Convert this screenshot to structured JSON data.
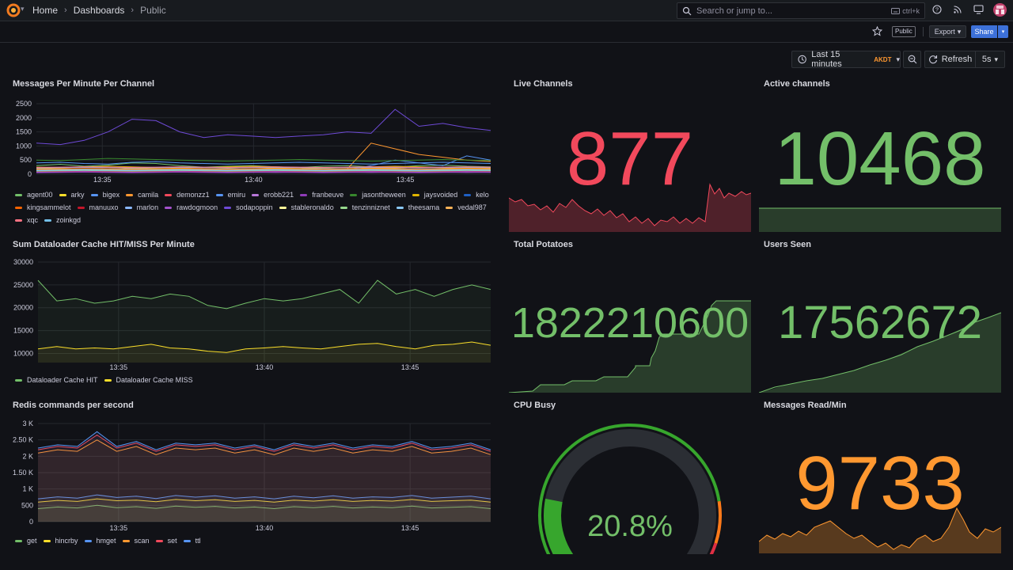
{
  "breadcrumb": {
    "home": "Home",
    "dashboards": "Dashboards",
    "current": "Public"
  },
  "search": {
    "placeholder": "Search or jump to...",
    "shortcut": "ctrl+k"
  },
  "toolbar": {
    "public_tag": "Public",
    "export_label": "Export",
    "share_label": "Share"
  },
  "time": {
    "range": "Last 15 minutes",
    "timezone": "AKDT",
    "refresh_label": "Refresh",
    "interval": "5s"
  },
  "icons": [
    "grafana-logo-icon",
    "search-icon",
    "keyboard-icon",
    "help-icon",
    "news-rss-icon",
    "monitor-icon",
    "user-avatar-icon",
    "star-icon",
    "clock-icon",
    "zoom-out-icon",
    "refresh-icon",
    "chevron-down-icon"
  ],
  "colors": {
    "green": "#73bf69",
    "red": "#f2495c",
    "orange": "#ff9830",
    "yellow": "#fade2a",
    "blue": "#5794f2",
    "accent": "#3d71d9"
  },
  "panels": {
    "messages_per_minute": {
      "title": "Messages Per Minute Per Channel"
    },
    "dataloader": {
      "title": "Sum Dataloader Cache HIT/MISS Per Minute"
    },
    "redis": {
      "title": "Redis commands per second"
    },
    "live_channels": {
      "title": "Live Channels",
      "value": "877",
      "color": "#f2495c"
    },
    "active_channels": {
      "title": "Active channels",
      "value": "10468",
      "color": "#73bf69"
    },
    "total_potatoes": {
      "title": "Total Potatoes",
      "value": "1822210600",
      "color": "#73bf69"
    },
    "users_seen": {
      "title": "Users Seen",
      "value": "17562672",
      "color": "#73bf69"
    },
    "cpu_busy": {
      "title": "CPU Busy",
      "value": "20.8%",
      "percent": 20.8,
      "color": "#73bf69"
    },
    "messages_read": {
      "title": "Messages Read/Min",
      "value": "9733",
      "color": "#ff9830"
    }
  },
  "chart_data": [
    {
      "type": "line",
      "title": "Messages Per Minute Per Channel",
      "x_ticks": [
        "13:35",
        "13:40",
        "13:45"
      ],
      "y_ticks": [
        "2500",
        "2000",
        "1500",
        "1000",
        "500",
        "0"
      ],
      "ylim": [
        0,
        2500
      ],
      "legend_placement": "bottom",
      "series": [
        {
          "name": "agent00",
          "color": "#73bf69",
          "values": [
            300,
            350,
            280,
            320,
            400,
            380,
            300,
            250,
            280,
            300,
            260,
            240,
            280,
            300,
            260,
            250,
            300,
            320,
            280,
            260
          ]
        },
        {
          "name": "arky",
          "color": "#fade2a",
          "values": [
            200,
            220,
            260,
            240,
            200,
            220,
            250,
            230,
            210,
            240,
            220,
            200,
            210,
            230,
            220,
            210,
            240,
            220,
            200,
            210
          ]
        },
        {
          "name": "bigex",
          "color": "#5794f2",
          "values": [
            150,
            140,
            160,
            170,
            150,
            140,
            160,
            150,
            140,
            150,
            160,
            170,
            150,
            140,
            300,
            500,
            400,
            300,
            650,
            500
          ]
        },
        {
          "name": "camila",
          "color": "#ff9830",
          "values": [
            100,
            120,
            140,
            160,
            150,
            140,
            130,
            150,
            170,
            160,
            150,
            140,
            160,
            180,
            1100,
            900,
            700,
            600,
            500,
            450
          ]
        },
        {
          "name": "demonzz1",
          "color": "#f2495c",
          "values": [
            80,
            90,
            100,
            110,
            100,
            90,
            100,
            110,
            120,
            110,
            100,
            90,
            100,
            110,
            120,
            110,
            100,
            90,
            100,
            110
          ]
        },
        {
          "name": "emiru",
          "color": "#5794f2",
          "values": [
            400,
            420,
            380,
            360,
            420,
            440,
            400,
            380,
            360,
            380,
            400,
            420,
            400,
            380,
            360,
            380,
            400,
            420,
            400,
            380
          ]
        },
        {
          "name": "erobb221",
          "color": "#b877d9",
          "values": [
            60,
            70,
            80,
            70,
            60,
            70,
            80,
            90,
            80,
            70,
            60,
            70,
            80,
            70,
            60,
            70,
            80,
            70,
            60,
            70
          ]
        },
        {
          "name": "franbeuve",
          "color": "#8f3bb8",
          "values": [
            50,
            60,
            70,
            60,
            50,
            60,
            70,
            60,
            50,
            60,
            70,
            60,
            50,
            60,
            70,
            60,
            50,
            60,
            70,
            60
          ]
        },
        {
          "name": "jasontheween",
          "color": "#37872d",
          "values": [
            500,
            480,
            520,
            560,
            540,
            520,
            500,
            480,
            460,
            480,
            500,
            520,
            500,
            480,
            460,
            480,
            500,
            520,
            500,
            480
          ]
        },
        {
          "name": "jaysvoided",
          "color": "#e0b400",
          "values": [
            250,
            240,
            260,
            280,
            260,
            240,
            220,
            240,
            260,
            280,
            260,
            240,
            220,
            240,
            260,
            280,
            260,
            240,
            220,
            240
          ]
        },
        {
          "name": "kelo",
          "color": "#1f60c4",
          "values": [
            120,
            130,
            140,
            130,
            120,
            130,
            140,
            130,
            120,
            130,
            140,
            130,
            120,
            130,
            140,
            130,
            120,
            130,
            140,
            130
          ]
        },
        {
          "name": "kingsammelot",
          "color": "#fa6400",
          "values": [
            180,
            190,
            200,
            190,
            180,
            190,
            200,
            190,
            180,
            190,
            200,
            190,
            180,
            190,
            200,
            190,
            180,
            190,
            200,
            190
          ]
        },
        {
          "name": "manuuxo",
          "color": "#c4162a",
          "values": [
            90,
            100,
            110,
            100,
            90,
            100,
            110,
            100,
            90,
            100,
            110,
            100,
            90,
            100,
            110,
            100,
            90,
            100,
            110,
            100
          ]
        },
        {
          "name": "marlon",
          "color": "#8ab8ff",
          "values": [
            220,
            230,
            240,
            230,
            220,
            230,
            240,
            230,
            220,
            230,
            240,
            230,
            220,
            230,
            240,
            230,
            220,
            230,
            240,
            230
          ]
        },
        {
          "name": "rawdogmoon",
          "color": "#a352cc",
          "values": [
            70,
            80,
            90,
            80,
            70,
            80,
            90,
            80,
            70,
            80,
            90,
            80,
            70,
            80,
            90,
            80,
            70,
            80,
            90,
            80
          ]
        },
        {
          "name": "sodapoppin",
          "color": "#6e4ad6",
          "values": [
            1100,
            1050,
            1200,
            1500,
            1950,
            1900,
            1500,
            1300,
            1400,
            1350,
            1300,
            1350,
            1400,
            1500,
            1450,
            2300,
            1700,
            1800,
            1650,
            1550
          ]
        },
        {
          "name": "stableronaldo",
          "color": "#fff899",
          "values": [
            150,
            160,
            170,
            160,
            150,
            160,
            170,
            160,
            150,
            160,
            170,
            160,
            150,
            160,
            170,
            160,
            150,
            160,
            170,
            160
          ]
        },
        {
          "name": "tenzinniznet",
          "color": "#96d98d",
          "values": [
            110,
            120,
            130,
            120,
            110,
            120,
            130,
            120,
            110,
            120,
            130,
            120,
            110,
            120,
            130,
            120,
            110,
            120,
            130,
            120
          ]
        },
        {
          "name": "theesama",
          "color": "#8ac8f5",
          "values": [
            130,
            140,
            150,
            140,
            130,
            140,
            150,
            140,
            130,
            140,
            150,
            140,
            130,
            140,
            150,
            140,
            130,
            140,
            150,
            140
          ]
        },
        {
          "name": "vedal987",
          "color": "#ffb357",
          "values": [
            160,
            170,
            180,
            170,
            160,
            170,
            180,
            170,
            160,
            170,
            180,
            170,
            160,
            170,
            180,
            170,
            160,
            170,
            180,
            170
          ]
        },
        {
          "name": "xqc",
          "color": "#ff7383",
          "values": [
            240,
            250,
            260,
            250,
            240,
            250,
            260,
            250,
            240,
            250,
            260,
            250,
            240,
            250,
            260,
            250,
            240,
            250,
            260,
            250
          ]
        },
        {
          "name": "zoinkgd",
          "color": "#73bfe8",
          "values": [
            140,
            150,
            160,
            150,
            140,
            150,
            160,
            150,
            140,
            150,
            160,
            150,
            140,
            150,
            160,
            150,
            140,
            150,
            160,
            150
          ]
        }
      ]
    },
    {
      "type": "area",
      "title": "Sum Dataloader Cache HIT/MISS Per Minute",
      "x_ticks": [
        "13:35",
        "13:40",
        "13:45"
      ],
      "y_ticks": [
        "30000",
        "25000",
        "20000",
        "15000",
        "10000"
      ],
      "ylim": [
        8000,
        30000
      ],
      "legend_placement": "bottom",
      "series": [
        {
          "name": "Dataloader Cache HIT",
          "color": "#73bf69",
          "values": [
            26000,
            21500,
            22000,
            21000,
            21500,
            22500,
            22000,
            23000,
            22500,
            20500,
            19800,
            21000,
            22000,
            21500,
            22000,
            23000,
            24000,
            21000,
            26000,
            23000,
            24000,
            22500,
            24000,
            25000,
            24000
          ]
        },
        {
          "name": "Dataloader Cache MISS",
          "color": "#fade2a",
          "values": [
            11000,
            11500,
            11000,
            11200,
            11000,
            11500,
            12000,
            11200,
            11000,
            10500,
            10200,
            11000,
            11200,
            11500,
            11200,
            11000,
            11500,
            12000,
            12200,
            11500,
            11000,
            11800,
            12000,
            12500,
            11800
          ]
        }
      ]
    },
    {
      "type": "area",
      "title": "Redis commands per second",
      "x_ticks": [
        "13:35",
        "13:40",
        "13:45"
      ],
      "y_ticks": [
        "3 K",
        "2.50 K",
        "2 K",
        "1.50 K",
        "1 K",
        "500",
        "0"
      ],
      "ylim": [
        0,
        3000
      ],
      "legend_placement": "bottom",
      "series": [
        {
          "name": "get",
          "color": "#73bf69",
          "values": [
            400,
            450,
            420,
            500,
            430,
            460,
            410,
            480,
            440,
            470,
            420,
            450,
            400,
            460,
            430,
            470,
            420,
            450,
            430,
            480,
            420,
            440,
            460,
            400
          ]
        },
        {
          "name": "hincrby",
          "color": "#fade2a",
          "values": [
            600,
            650,
            620,
            700,
            640,
            660,
            610,
            680,
            640,
            670,
            620,
            650,
            600,
            660,
            630,
            670,
            620,
            650,
            630,
            680,
            620,
            640,
            660,
            600
          ]
        },
        {
          "name": "hmget",
          "color": "#5794f2",
          "values": [
            700,
            760,
            720,
            820,
            740,
            780,
            710,
            800,
            750,
            790,
            720,
            760,
            700,
            780,
            730,
            790,
            720,
            760,
            740,
            800,
            720,
            750,
            780,
            700
          ]
        },
        {
          "name": "scan",
          "color": "#ff9830",
          "values": [
            2100,
            2200,
            2150,
            2500,
            2150,
            2300,
            2050,
            2250,
            2200,
            2250,
            2100,
            2200,
            2050,
            2250,
            2150,
            2250,
            2100,
            2200,
            2150,
            2300,
            2100,
            2150,
            2250,
            2050
          ]
        },
        {
          "name": "set",
          "color": "#f2495c",
          "values": [
            2200,
            2300,
            2250,
            2650,
            2250,
            2400,
            2150,
            2350,
            2300,
            2350,
            2200,
            2300,
            2150,
            2350,
            2250,
            2350,
            2200,
            2300,
            2250,
            2400,
            2200,
            2250,
            2350,
            2150
          ]
        },
        {
          "name": "ttl",
          "color": "#5794f2",
          "values": [
            2250,
            2350,
            2300,
            2750,
            2300,
            2450,
            2200,
            2400,
            2350,
            2400,
            2250,
            2350,
            2200,
            2400,
            2300,
            2400,
            2250,
            2350,
            2300,
            2450,
            2250,
            2300,
            2400,
            2200
          ]
        }
      ]
    }
  ]
}
